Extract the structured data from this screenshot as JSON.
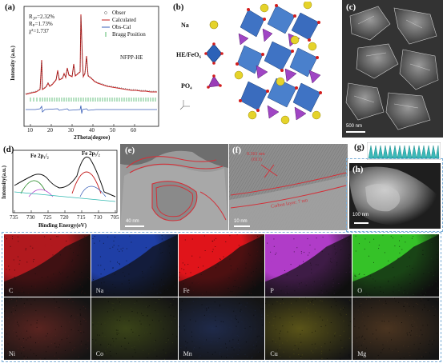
{
  "panels": {
    "a": {
      "label": "(a)"
    },
    "b": {
      "label": "(b)"
    },
    "c": {
      "label": "(c)"
    },
    "d": {
      "label": "(d)"
    },
    "e": {
      "label": "(e)"
    },
    "f": {
      "label": "(f)"
    },
    "g": {
      "label": "(g)"
    },
    "h": {
      "label": "(h)"
    }
  },
  "xrd": {
    "stats": [
      "R₂ₚ=2.32%",
      "Rₚ=1.73%",
      "χ²=1.737"
    ],
    "legend": [
      "Obser",
      "Calculated",
      "Obs-Cal",
      "Bragg Position"
    ],
    "sample": "NFPP-HE",
    "ylabel": "Intensity (a.u.)",
    "xlabel": "2Theta(degree)",
    "xticks": [
      "10",
      "20",
      "30",
      "40",
      "50",
      "60"
    ]
  },
  "structure": {
    "legend": [
      "Na",
      "HE/FeO₆",
      "PO₄"
    ]
  },
  "sem": {
    "scale": "500 nm"
  },
  "xps": {
    "peak1": "Fe 2p₁/₂",
    "peak2": "Fe 2p₃/₂",
    "ylabel": "Intensity(a.u.)",
    "xlabel": "Binding Energy(eV)",
    "xticks": [
      "735",
      "730",
      "725",
      "720",
      "715",
      "710",
      "705"
    ]
  },
  "tem": {
    "scale": "40 nm"
  },
  "hrtem": {
    "d": "0.361 nm",
    "plane": "(011)",
    "carbon": "Carbon layer: 7 nm",
    "scale": "10 nm"
  },
  "haadf": {
    "scale": "100 nm"
  },
  "maps": {
    "row1": [
      "C",
      "Na",
      "Fe",
      "P",
      "O"
    ],
    "row2": [
      "Ni",
      "Co",
      "Mn",
      "Cu",
      "Mg"
    ]
  },
  "colors": {
    "C": "#b1191e",
    "Na": "#1f3fa6",
    "Fe": "#e0141a",
    "P": "#b03cc8",
    "O": "#35c228",
    "Ni": "#5a2420",
    "Co": "#3a4418",
    "Mn": "#1f2a4a",
    "Cu": "#5a5418",
    "Mg": "#4a3420"
  }
}
